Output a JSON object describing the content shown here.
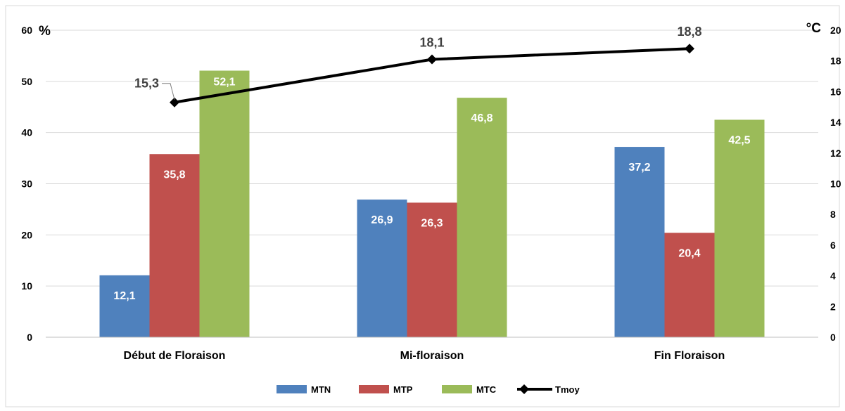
{
  "chart_data": {
    "type": "bar",
    "categories": [
      "Début de Floraison",
      "Mi-floraison",
      "Fin Floraison"
    ],
    "series": [
      {
        "name": "MTN",
        "values": [
          12.1,
          26.9,
          37.2
        ],
        "labels": [
          "12,1",
          "26,9",
          "37,2"
        ],
        "color": "#4F81BD"
      },
      {
        "name": "MTP",
        "values": [
          35.8,
          26.3,
          20.4
        ],
        "labels": [
          "35,8",
          "26,3",
          "20,4"
        ],
        "color": "#C0504D"
      },
      {
        "name": "MTC",
        "values": [
          52.1,
          46.8,
          42.5
        ],
        "labels": [
          "52,1",
          "46,8",
          "42,5"
        ],
        "color": "#9BBB59"
      }
    ],
    "line_series": {
      "name": "Tmoy",
      "values": [
        15.3,
        18.1,
        18.8
      ],
      "labels": [
        "15,3",
        "18,1",
        "18,8"
      ],
      "color": "#000000",
      "axis": "right"
    },
    "y_left": {
      "unit_label": "%",
      "ylim": [
        0,
        60
      ],
      "ticks": [
        "0",
        "10",
        "20",
        "30",
        "40",
        "50",
        "60"
      ]
    },
    "y_right": {
      "unit_label": "°C",
      "ylim": [
        0,
        20
      ],
      "ticks": [
        "0",
        "2",
        "4",
        "6",
        "8",
        "10",
        "12",
        "14",
        "16",
        "18",
        "20"
      ]
    },
    "grid": true,
    "legend_position": "bottom"
  }
}
